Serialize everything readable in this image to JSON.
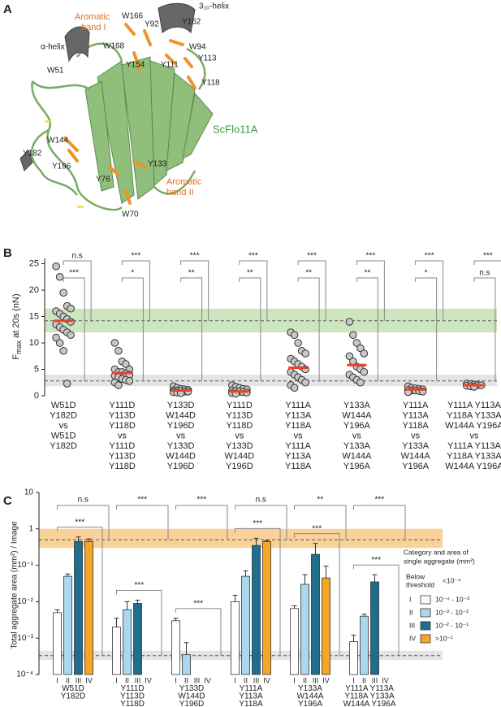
{
  "panel_a": {
    "label": "A",
    "residues": [
      "W166",
      "Y162",
      "Y92",
      "W94",
      "W168",
      "Y154",
      "Y111",
      "Y113",
      "W51",
      "Y118",
      "Y182",
      "W144",
      "Y196",
      "Y133",
      "Y76",
      "W70"
    ],
    "helices": [
      "α-helix",
      "3₁₀-helix"
    ],
    "bands": [
      [
        "Aromatic",
        "band I"
      ],
      [
        "Aromatic",
        "band II"
      ]
    ],
    "protein": "ScFlo11A"
  },
  "chart_data": [
    {
      "panel": "B",
      "type": "dot",
      "ylabel": {
        "main": "F",
        "sub": "max",
        "rest": " at 20s (nN)"
      },
      "ylim": [
        0,
        26
      ],
      "yticks": [
        0,
        5,
        10,
        15,
        20,
        25
      ],
      "categories": [
        [
          "W51D",
          "Y182D",
          "vs",
          "W51D",
          "Y182D"
        ],
        [
          "Y111D",
          "Y113D",
          "Y118D",
          "vs",
          "Y111D",
          "Y113D",
          "Y118D"
        ],
        [
          "Y133D",
          "W144D",
          "Y196D",
          "vs",
          "Y133D",
          "W144D",
          "Y196D"
        ],
        [
          "Y111D",
          "Y113D",
          "Y118D",
          "vs",
          "Y133D",
          "W144D",
          "Y196D"
        ],
        [
          "Y111A",
          "Y113A",
          "Y118A",
          "vs",
          "Y111A",
          "Y113A",
          "Y118A"
        ],
        [
          "Y133A",
          "W144A",
          "Y196A",
          "vs",
          "Y133A",
          "W144A",
          "Y196A"
        ],
        [
          "Y111A",
          "Y113A",
          "Y118A",
          "vs",
          "Y133A",
          "W144A",
          "Y196A"
        ],
        [
          "Y111A Y113A",
          "Y118A Y133A",
          "W144A Y196A",
          "vs",
          "Y111A Y113A",
          "Y118A Y133A",
          "W144A Y196A"
        ]
      ],
      "values": [
        [
          24.5,
          22.5,
          19.5,
          17,
          16.5,
          16,
          15.5,
          15,
          14.5,
          14,
          13.5,
          13,
          12.5,
          12,
          11.5,
          11,
          10,
          8.5,
          2.3
        ],
        [
          10,
          8.5,
          6.5,
          6,
          5,
          5,
          4.5,
          4.5,
          4.2,
          4,
          3.8,
          3.5,
          3.2,
          3,
          2.8,
          2.5,
          2
        ],
        [
          1.8,
          1.5,
          1.3,
          1.2,
          1.1,
          1,
          1,
          0.9,
          0.8,
          0.8,
          0.7,
          0.6,
          0.5
        ],
        [
          2,
          1.7,
          1.5,
          1.3,
          1.2,
          1,
          0.9,
          0.8,
          0.7,
          0.6,
          0.5,
          0.4
        ],
        [
          12,
          11.5,
          10,
          8.5,
          8,
          7,
          6.5,
          6,
          5.5,
          5,
          4.5,
          4,
          3.5,
          3,
          2.5,
          2,
          1.5
        ],
        [
          14,
          11.5,
          10,
          9,
          8,
          7.5,
          6.5,
          5.5,
          5,
          4.5,
          4,
          3.5,
          3,
          2.5
        ],
        [
          1.8,
          1.5,
          1.4,
          1.3,
          1.2,
          1.1,
          1,
          1,
          0.9,
          0.8,
          0.7
        ],
        [
          2.3,
          2.2,
          2.1,
          2,
          2,
          1.9,
          1.8,
          1.7
        ]
      ],
      "medians": [
        14.2,
        4.3,
        1,
        0.8,
        5.3,
        5.8,
        1.2,
        2
      ],
      "point_color": "#c8c8c8",
      "median_color": "#e8432a",
      "significance": [
        [
          "n.s",
          "***"
        ],
        [
          "***",
          "*"
        ],
        [
          "***",
          "**"
        ],
        [
          "***",
          "**"
        ],
        [
          "***",
          "**"
        ],
        [
          "***",
          "**"
        ],
        [
          "***",
          "*"
        ],
        [
          "***",
          "n.s"
        ]
      ],
      "bands": [
        {
          "range": [
            12,
            16.5
          ],
          "line": 14.2,
          "color": "#cde6bf"
        },
        {
          "range": [
            1.8,
            4
          ],
          "line": 2.8,
          "color": "#e4e4e4"
        }
      ]
    },
    {
      "panel": "C",
      "type": "bar",
      "log_scale": true,
      "ylabel": "Total aggregate area (mm²) / Image",
      "ylim": [
        0.0001,
        10
      ],
      "yticks": [
        {
          "value": 0.0001,
          "label": "10⁻⁴"
        },
        {
          "value": 0.001,
          "label": "10⁻³"
        },
        {
          "value": 0.01,
          "label": "10⁻²"
        },
        {
          "value": 0.1,
          "label": "10⁻¹"
        },
        1,
        10
      ],
      "categories": [
        [
          "W51D",
          "Y182D"
        ],
        [
          "Y111D",
          "Y113D",
          "Y118D"
        ],
        [
          "Y133D",
          "W144D",
          "Y196D"
        ],
        [
          "Y111A",
          "Y113A",
          "Y118A"
        ],
        [
          "Y133A",
          "W144A",
          "Y196A"
        ],
        [
          "Y111A Y113A",
          "Y118A Y133A",
          "W144A Y196A"
        ]
      ],
      "series": [
        {
          "name": "I",
          "color": "#ffffff",
          "range": "10⁻⁴ - 10⁻³",
          "values": [
            0.005,
            0.002,
            0.003,
            0.01,
            0.0065,
            0.0008
          ],
          "errors": [
            0.001,
            0.0015,
            0.0005,
            0.005,
            0.0012,
            0.0004
          ]
        },
        {
          "name": "II",
          "color": "#a9d8ef",
          "range": "10⁻³ - 10⁻²",
          "values": [
            0.05,
            0.006,
            0.00035,
            0.05,
            0.03,
            0.004
          ],
          "errors": [
            0.008,
            0.004,
            0.0004,
            0.02,
            0.025,
            0.0005
          ]
        },
        {
          "name": "III",
          "color": "#1f6e8c",
          "range": "10⁻² - 10⁻¹",
          "values": [
            0.45,
            0.009,
            null,
            0.35,
            0.2,
            0.035
          ],
          "errors": [
            0.15,
            0.002,
            null,
            0.2,
            0.2,
            0.02
          ]
        },
        {
          "name": "IV",
          "color": "#f5a623",
          "range": ">10⁻¹",
          "values": [
            0.45,
            null,
            null,
            0.45,
            0.045,
            null
          ],
          "errors": [
            0.08,
            null,
            null,
            0.03,
            0.05,
            null
          ]
        }
      ],
      "significance": [
        [
          "n.s",
          "***"
        ],
        [
          "***",
          "***"
        ],
        [
          "***",
          "***"
        ],
        [
          "n.s",
          "***"
        ],
        [
          "**",
          "***"
        ],
        [
          "***",
          "***"
        ]
      ],
      "bands": [
        {
          "range": [
            0.3,
            1
          ],
          "line": 0.5,
          "color": "#f9d29a"
        },
        {
          "range": [
            0.00025,
            0.00045
          ],
          "line": 0.00033,
          "color": "#e4e4e4"
        }
      ],
      "legend": {
        "title": [
          "Category and area of",
          "single aggregate (mm²)"
        ],
        "below_label": [
          "Below",
          "threshold"
        ],
        "below_range": "<10⁻⁴"
      }
    }
  ]
}
